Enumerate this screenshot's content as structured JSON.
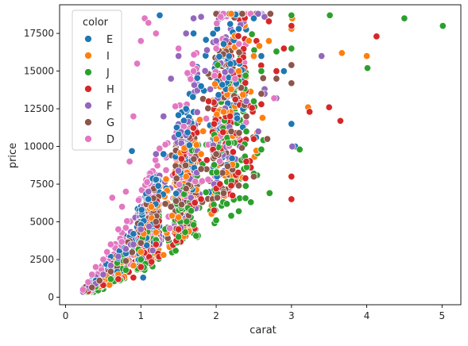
{
  "chart_data": {
    "type": "scatter",
    "xlabel": "carat",
    "ylabel": "price",
    "xlim": [
      -0.08,
      5.25
    ],
    "ylim": [
      -500,
      19400
    ],
    "x_ticks": [
      0,
      1,
      2,
      3,
      4,
      5
    ],
    "y_ticks": [
      0,
      2500,
      5000,
      7500,
      10000,
      12500,
      15000,
      17500
    ],
    "grid": false,
    "legend": {
      "title": "color",
      "placement": "top-left",
      "entries": [
        "E",
        "I",
        "J",
        "H",
        "F",
        "G",
        "D"
      ]
    },
    "series": [
      {
        "name": "E",
        "color": "#1f77b4",
        "points": [
          [
            0.23,
            326
          ],
          [
            0.25,
            420
          ],
          [
            0.3,
            560
          ],
          [
            0.35,
            780
          ],
          [
            0.4,
            1100
          ],
          [
            0.5,
            1500
          ],
          [
            0.6,
            2000
          ],
          [
            0.7,
            2600
          ],
          [
            0.8,
            2900
          ],
          [
            0.9,
            4200
          ],
          [
            1.0,
            4800
          ],
          [
            1.01,
            5800
          ],
          [
            1.1,
            6500
          ],
          [
            1.2,
            7800
          ],
          [
            1.3,
            9500
          ],
          [
            1.5,
            10800
          ],
          [
            1.6,
            12500
          ],
          [
            1.8,
            14000
          ],
          [
            2.0,
            15500
          ],
          [
            2.1,
            16800
          ],
          [
            2.3,
            17800
          ],
          [
            2.5,
            18500
          ],
          [
            2.6,
            16000
          ],
          [
            2.53,
            10600
          ],
          [
            2.9,
            15000
          ],
          [
            3.0,
            11500
          ],
          [
            3.05,
            10000
          ],
          [
            0.88,
            9700
          ],
          [
            1.03,
            1300
          ],
          [
            1.25,
            18700
          ],
          [
            1.7,
            17500
          ]
        ]
      },
      {
        "name": "I",
        "color": "#ff7f0e",
        "points": [
          [
            0.3,
            380
          ],
          [
            0.4,
            700
          ],
          [
            0.5,
            900
          ],
          [
            0.7,
            1500
          ],
          [
            0.9,
            2100
          ],
          [
            1.0,
            3000
          ],
          [
            1.2,
            4300
          ],
          [
            1.5,
            5300
          ],
          [
            1.6,
            8000
          ],
          [
            1.8,
            9500
          ],
          [
            2.0,
            10500
          ],
          [
            2.1,
            12300
          ],
          [
            2.2,
            13800
          ],
          [
            2.3,
            15000
          ],
          [
            2.5,
            16000
          ],
          [
            2.7,
            17000
          ],
          [
            2.8,
            15000
          ],
          [
            3.0,
            17800
          ],
          [
            3.01,
            18500
          ],
          [
            3.22,
            12600
          ],
          [
            3.67,
            16200
          ],
          [
            4.0,
            16000
          ],
          [
            2.2,
            18800
          ],
          [
            1.3,
            2800
          ]
        ]
      },
      {
        "name": "J",
        "color": "#2ca02c",
        "points": [
          [
            0.3,
            350
          ],
          [
            0.4,
            700
          ],
          [
            0.6,
            1200
          ],
          [
            0.8,
            1800
          ],
          [
            1.0,
            2500
          ],
          [
            1.2,
            3800
          ],
          [
            1.5,
            4000
          ],
          [
            1.7,
            4800
          ],
          [
            2.0,
            5100
          ],
          [
            2.2,
            5400
          ],
          [
            2.3,
            5700
          ],
          [
            2.46,
            6300
          ],
          [
            2.71,
            6900
          ],
          [
            2.5,
            8200
          ],
          [
            2.6,
            9800
          ],
          [
            2.4,
            11000
          ],
          [
            2.5,
            13000
          ],
          [
            2.6,
            15000
          ],
          [
            2.8,
            16300
          ],
          [
            3.0,
            16500
          ],
          [
            3.0,
            18700
          ],
          [
            3.11,
            9800
          ],
          [
            3.51,
            18700
          ],
          [
            4.01,
            15200
          ],
          [
            4.5,
            18500
          ],
          [
            5.01,
            18000
          ],
          [
            2.02,
            15400
          ]
        ]
      },
      {
        "name": "H",
        "color": "#d62728",
        "points": [
          [
            0.3,
            400
          ],
          [
            0.5,
            800
          ],
          [
            0.7,
            1200
          ],
          [
            0.9,
            1300
          ],
          [
            1.0,
            2000
          ],
          [
            1.2,
            3500
          ],
          [
            1.5,
            4500
          ],
          [
            1.8,
            6500
          ],
          [
            2.0,
            7200
          ],
          [
            2.05,
            7500
          ],
          [
            2.1,
            6800
          ],
          [
            2.2,
            7400
          ],
          [
            2.4,
            9000
          ],
          [
            2.5,
            10500
          ],
          [
            2.6,
            12800
          ],
          [
            2.8,
            15000
          ],
          [
            2.9,
            16500
          ],
          [
            3.0,
            18000
          ],
          [
            3.0,
            6500
          ],
          [
            3.0,
            8000
          ],
          [
            3.24,
            12300
          ],
          [
            3.5,
            12600
          ],
          [
            3.65,
            11700
          ],
          [
            4.13,
            17300
          ],
          [
            2.7,
            18300
          ],
          [
            1.9,
            13000
          ]
        ]
      },
      {
        "name": "F",
        "color": "#9467bd",
        "points": [
          [
            0.23,
            357
          ],
          [
            0.3,
            600
          ],
          [
            0.4,
            900
          ],
          [
            0.5,
            1500
          ],
          [
            0.6,
            2100
          ],
          [
            0.7,
            2700
          ],
          [
            0.8,
            3200
          ],
          [
            0.9,
            3500
          ],
          [
            1.0,
            4500
          ],
          [
            1.1,
            7000
          ],
          [
            1.2,
            9500
          ],
          [
            1.3,
            12000
          ],
          [
            1.4,
            14500
          ],
          [
            1.5,
            16000
          ],
          [
            1.6,
            17500
          ],
          [
            1.7,
            18500
          ],
          [
            1.8,
            18600
          ],
          [
            2.0,
            17000
          ],
          [
            2.2,
            15000
          ],
          [
            2.4,
            13000
          ],
          [
            2.56,
            11000
          ],
          [
            3.01,
            10000
          ],
          [
            3.4,
            16000
          ],
          [
            2.8,
            13200
          ]
        ]
      },
      {
        "name": "G",
        "color": "#8c564b",
        "points": [
          [
            0.25,
            450
          ],
          [
            0.35,
            650
          ],
          [
            0.45,
            1100
          ],
          [
            0.6,
            1700
          ],
          [
            0.8,
            2400
          ],
          [
            1.0,
            3600
          ],
          [
            1.2,
            5000
          ],
          [
            1.4,
            6000
          ],
          [
            1.6,
            7200
          ],
          [
            1.8,
            8500
          ],
          [
            2.0,
            9500
          ],
          [
            2.2,
            11000
          ],
          [
            2.4,
            12000
          ],
          [
            2.6,
            13500
          ],
          [
            2.8,
            14500
          ],
          [
            3.0,
            15400
          ],
          [
            2.0,
            18800
          ],
          [
            2.72,
            18800
          ],
          [
            2.1,
            6900
          ],
          [
            2.3,
            7400
          ],
          [
            2.5,
            8000
          ],
          [
            3.0,
            14200
          ],
          [
            2.68,
            10500
          ]
        ]
      },
      {
        "name": "D",
        "color": "#e377c2",
        "points": [
          [
            0.23,
            500
          ],
          [
            0.3,
            1000
          ],
          [
            0.35,
            1500
          ],
          [
            0.4,
            2000
          ],
          [
            0.5,
            2500
          ],
          [
            0.55,
            3000
          ],
          [
            0.6,
            3500
          ],
          [
            0.62,
            6600
          ],
          [
            0.7,
            4500
          ],
          [
            0.75,
            6000
          ],
          [
            0.8,
            7000
          ],
          [
            0.85,
            9000
          ],
          [
            0.9,
            12000
          ],
          [
            0.95,
            15500
          ],
          [
            1.0,
            17000
          ],
          [
            1.05,
            18500
          ],
          [
            1.1,
            18200
          ],
          [
            1.2,
            17500
          ],
          [
            1.5,
            16500
          ],
          [
            1.7,
            15000
          ],
          [
            2.0,
            16500
          ],
          [
            2.25,
            14500
          ],
          [
            2.77,
            13200
          ],
          [
            2.06,
            18600
          ]
        ]
      }
    ],
    "cluster_style": {
      "x_density_center_1": 1.0,
      "x_density_center_2": 1.5,
      "x_density_center_3": 2.0
    }
  }
}
